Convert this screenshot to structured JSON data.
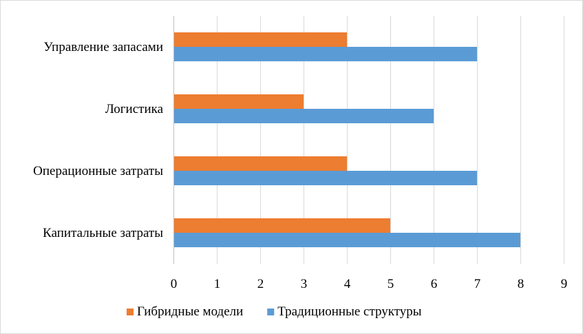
{
  "chart_data": {
    "type": "bar",
    "orientation": "horizontal",
    "title": "",
    "xlabel": "",
    "ylabel": "",
    "categories": [
      "Капитальные затраты",
      "Операционные затраты",
      "Логистика",
      "Управление запасами"
    ],
    "series": [
      {
        "name": "Традиционные структуры",
        "color": "#5b9bd5",
        "values": [
          8,
          7,
          6,
          7
        ]
      },
      {
        "name": "Гибридные модели",
        "color": "#ed7d31",
        "values": [
          5,
          4,
          3,
          4
        ]
      }
    ],
    "xlim": [
      0,
      9
    ],
    "xticks": [
      "0",
      "1",
      "2",
      "3",
      "4",
      "5",
      "6",
      "7",
      "8",
      "9"
    ],
    "grid": true,
    "legend": {
      "placement": "bottom",
      "order": [
        "Гибридные модели",
        "Традиционные структуры"
      ]
    }
  }
}
